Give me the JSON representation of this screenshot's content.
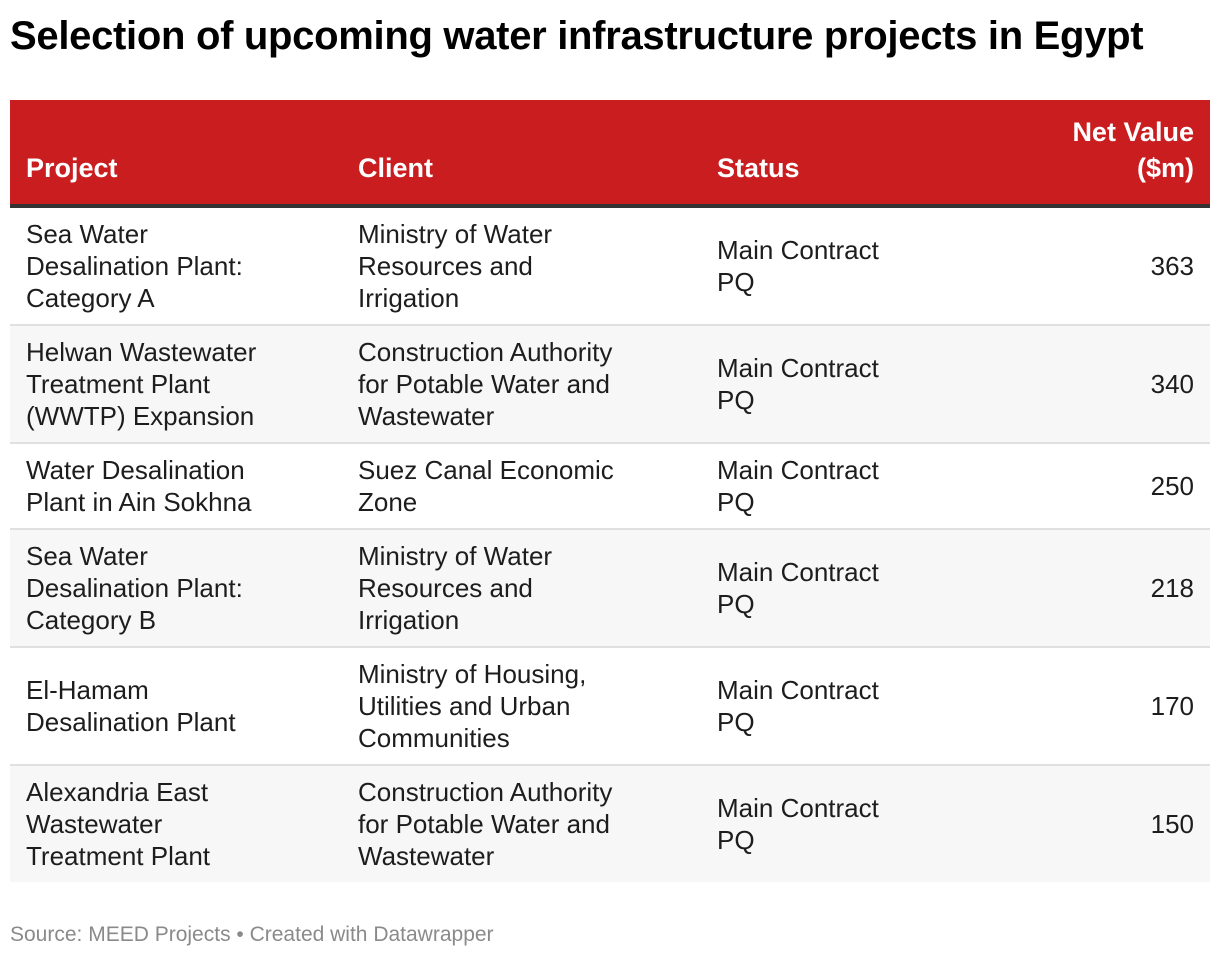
{
  "title": "Selection of upcoming water infrastructure projects in Egypt",
  "footer": {
    "text": "Source: MEED Projects • Created with Datawrapper"
  },
  "colors": {
    "header_bg": "#c91d1f",
    "header_text": "#ffffff",
    "row_alt_bg": "#f7f7f7"
  },
  "chart_data": {
    "type": "table",
    "title": "Selection of upcoming water infrastructure projects in Egypt",
    "columns": [
      "Project",
      "Client",
      "Status",
      "Net Value ($m)"
    ],
    "column_header_lines": [
      [
        "Project"
      ],
      [
        "Client"
      ],
      [
        "Status"
      ],
      [
        "Net Value",
        "($m)"
      ]
    ],
    "rows": [
      {
        "project_lines": [
          "Sea Water",
          "Desalination Plant:",
          "Category A"
        ],
        "client_lines": [
          "Ministry of Water",
          "Resources and",
          "Irrigation"
        ],
        "status_lines": [
          "Main Contract",
          "PQ"
        ],
        "value": "363"
      },
      {
        "project_lines": [
          "Helwan Wastewater",
          "Treatment Plant",
          "(WWTP) Expansion"
        ],
        "client_lines": [
          "Construction Authority",
          "for Potable Water and",
          "Wastewater"
        ],
        "status_lines": [
          "Main Contract",
          "PQ"
        ],
        "value": "340"
      },
      {
        "project_lines": [
          "Water Desalination",
          "Plant in Ain Sokhna"
        ],
        "client_lines": [
          "Suez Canal Economic",
          "Zone"
        ],
        "status_lines": [
          "Main Contract",
          "PQ"
        ],
        "value": "250"
      },
      {
        "project_lines": [
          "Sea Water",
          "Desalination Plant:",
          "Category B"
        ],
        "client_lines": [
          "Ministry of Water",
          "Resources and",
          "Irrigation"
        ],
        "status_lines": [
          "Main Contract",
          "PQ"
        ],
        "value": "218"
      },
      {
        "project_lines": [
          "El-Hamam",
          "Desalination Plant"
        ],
        "client_lines": [
          "Ministry of Housing,",
          "Utilities and Urban",
          "Communities"
        ],
        "status_lines": [
          "Main Contract",
          "PQ"
        ],
        "value": "170"
      },
      {
        "project_lines": [
          "Alexandria East",
          "Wastewater",
          "Treatment Plant"
        ],
        "client_lines": [
          "Construction Authority",
          "for Potable Water and",
          "Wastewater"
        ],
        "status_lines": [
          "Main Contract",
          "PQ"
        ],
        "value": "150"
      }
    ]
  }
}
